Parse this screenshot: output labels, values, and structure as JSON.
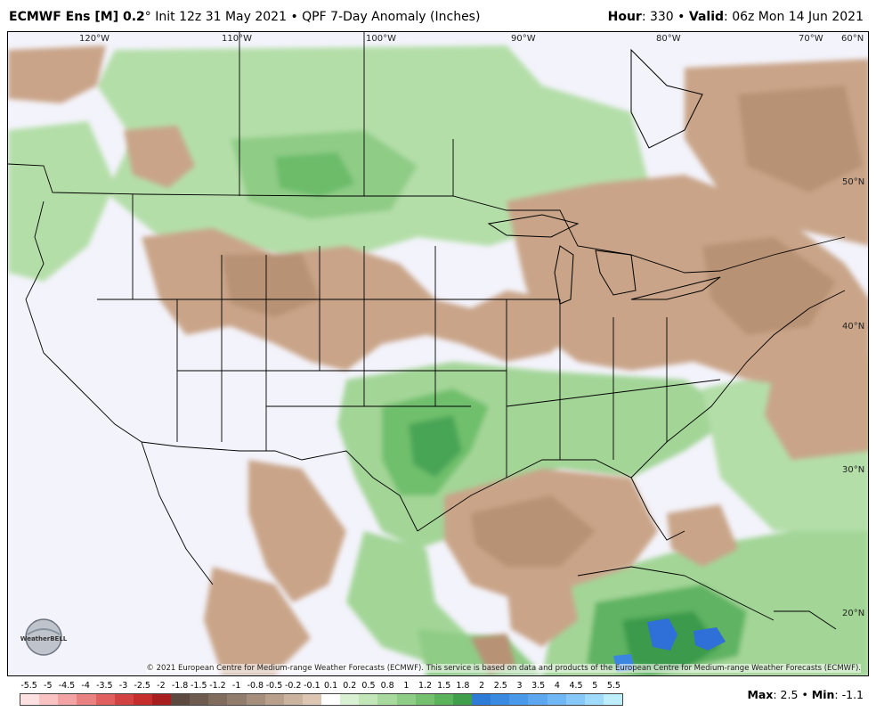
{
  "header": {
    "model": "ECMWF Ens [M] 0.2",
    "degree": "°",
    "init": "Init 12z 31 May 2021",
    "bullet": "•",
    "product": "QPF 7-Day Anomaly (Inches)",
    "hour_label": "Hour",
    "hour_value": ": 330",
    "valid_label": "Valid",
    "valid_value": ": 06z Mon 14 Jun 2021"
  },
  "map": {
    "lon_labels": [
      "120°W",
      "110°W",
      "100°W",
      "90°W",
      "80°W",
      "70°W",
      "60°N"
    ],
    "lat_labels": [
      "50°N",
      "40°N",
      "30°N",
      "20°N"
    ],
    "copyright": "© 2021 European Centre for Medium-range Weather Forecasts (ECMWF). This service is based on data and products of the European Centre for Medium-range Weather Forecasts (ECMWF).",
    "logo_text": "WeatherBELL",
    "colors": {
      "ocean_bg": "#f3f3fb",
      "dry": "#c9a488",
      "dry_dark": "#a8866b",
      "wet": "#9fd49a",
      "wet_dark": "#58b062",
      "very_wet": "#2b6fdc",
      "borders": "#000000"
    }
  },
  "legend": {
    "labels": [
      "-5.5",
      "-5",
      "-4.5",
      "-4",
      "-3.5",
      "-3",
      "-2.5",
      "-2",
      "-1.8",
      "-1.5",
      "-1.2",
      "-1",
      "-0.8",
      "-0.5",
      "-0.2",
      "-0.1",
      "0.1",
      "0.2",
      "0.5",
      "0.8",
      "1",
      "1.2",
      "1.5",
      "1.8",
      "2",
      "2.5",
      "3",
      "3.5",
      "4",
      "4.5",
      "5",
      "5.5"
    ],
    "colors": [
      "#fde0e0",
      "#f9c3c3",
      "#f3a3a3",
      "#ea8282",
      "#e06060",
      "#d34242",
      "#c52c2c",
      "#a81e1e",
      "#5c4a40",
      "#6e5a4e",
      "#806b5d",
      "#927c6c",
      "#a58e7c",
      "#b8a08d",
      "#cab39f",
      "#dcc6b3",
      "#ffffff",
      "#d9f0d2",
      "#c2e6b8",
      "#a8da9f",
      "#8ecd86",
      "#74c06e",
      "#5ab25a",
      "#3f9f4a",
      "#2e7bd8",
      "#3a8ae2",
      "#4a98ea",
      "#5ca7f0",
      "#70b7f5",
      "#86c8f9",
      "#a0dafc",
      "#bdeefe"
    ],
    "max_label": "Max",
    "max_value": ": 2.5",
    "min_label": "Min",
    "min_value": ": -1.1"
  }
}
